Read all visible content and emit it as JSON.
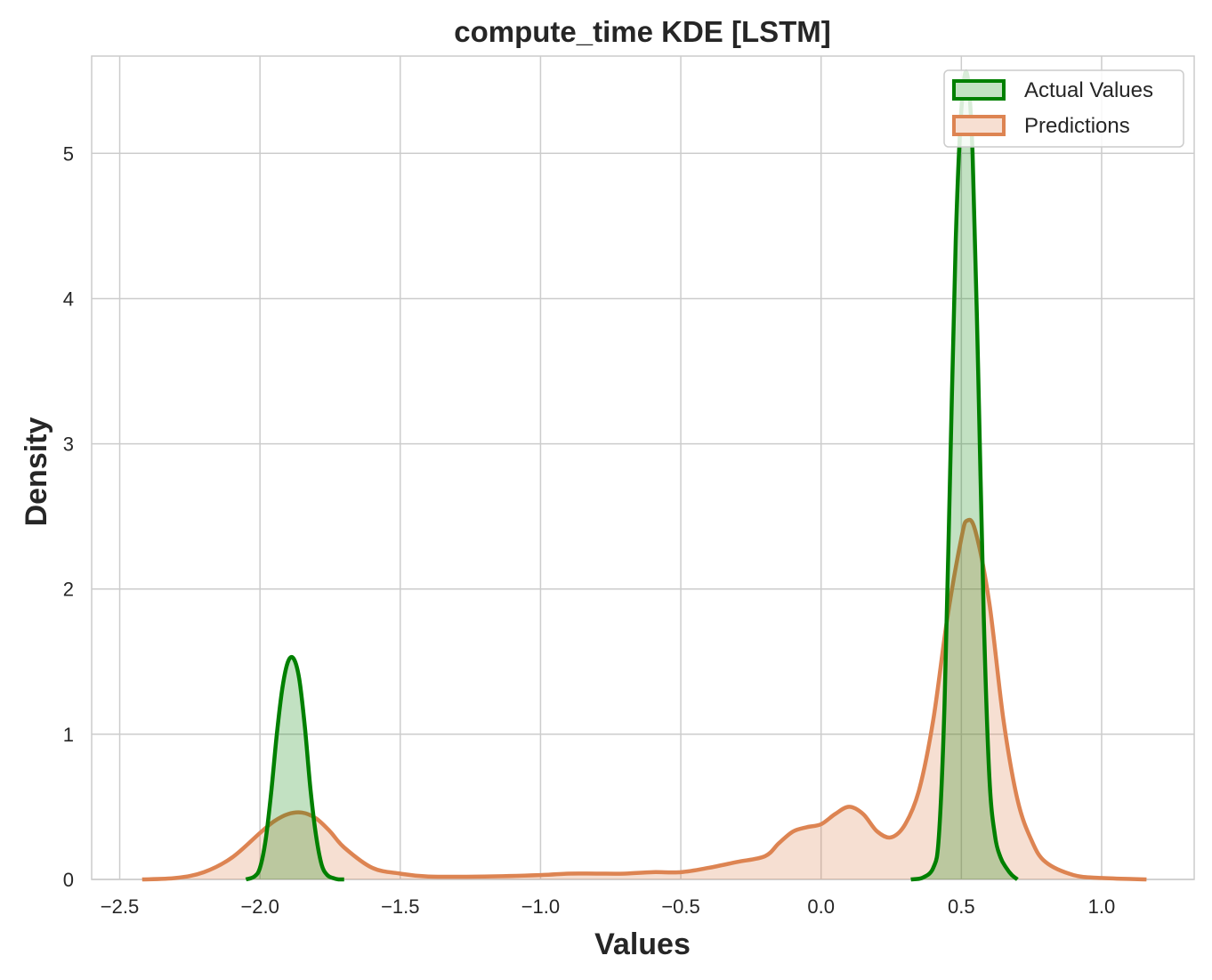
{
  "chart_data": {
    "type": "area",
    "title": "compute_time KDE [LSTM]",
    "xlabel": "Values",
    "ylabel": "Density",
    "xlim": [
      -2.6,
      1.33
    ],
    "ylim": [
      0,
      5.67
    ],
    "xticks": [
      -2.5,
      -2.0,
      -1.5,
      -1.0,
      -0.5,
      0.0,
      0.5,
      1.0
    ],
    "xtick_labels": [
      "−2.5",
      "−2.0",
      "−1.5",
      "−1.0",
      "−0.5",
      "0.0",
      "0.5",
      "1.0"
    ],
    "yticks": [
      0,
      1,
      2,
      3,
      4,
      5
    ],
    "ytick_labels": [
      "0",
      "1",
      "2",
      "3",
      "4",
      "5"
    ],
    "grid": true,
    "legend_position": "top-right",
    "series": [
      {
        "name": "Actual Values",
        "color": "#008000",
        "fill": "#c3e3c3",
        "x": [
          -2.05,
          -2.02,
          -2.0,
          -1.98,
          -1.96,
          -1.94,
          -1.92,
          -1.9,
          -1.88,
          -1.86,
          -1.84,
          -1.82,
          -1.8,
          -1.78,
          -1.76,
          -1.74,
          -1.72,
          -1.7,
          0.32,
          0.36,
          0.4,
          0.42,
          0.44,
          0.46,
          0.48,
          0.5,
          0.52,
          0.54,
          0.56,
          0.58,
          0.6,
          0.62,
          0.64,
          0.66,
          0.68,
          0.7
        ],
        "y": [
          0,
          0.02,
          0.08,
          0.27,
          0.6,
          1.0,
          1.32,
          1.5,
          1.52,
          1.38,
          1.05,
          0.62,
          0.3,
          0.1,
          0.03,
          0.01,
          0,
          0,
          0,
          0.01,
          0.08,
          0.3,
          1.2,
          2.8,
          4.4,
          5.3,
          5.55,
          5.0,
          3.5,
          1.8,
          0.7,
          0.3,
          0.15,
          0.08,
          0.03,
          0
        ]
      },
      {
        "name": "Predictions",
        "color": "#dd8452",
        "fill": "#f7dfd2",
        "x": [
          -2.42,
          -2.3,
          -2.2,
          -2.1,
          -2.0,
          -1.95,
          -1.9,
          -1.85,
          -1.8,
          -1.75,
          -1.7,
          -1.6,
          -1.5,
          -1.4,
          -1.2,
          -1.0,
          -0.9,
          -0.8,
          -0.7,
          -0.6,
          -0.5,
          -0.4,
          -0.3,
          -0.2,
          -0.15,
          -0.1,
          -0.05,
          0.0,
          0.05,
          0.1,
          0.15,
          0.2,
          0.25,
          0.3,
          0.35,
          0.4,
          0.45,
          0.5,
          0.52,
          0.55,
          0.6,
          0.65,
          0.7,
          0.75,
          0.8,
          0.9,
          1.0,
          1.16
        ],
        "y": [
          0,
          0.01,
          0.05,
          0.15,
          0.32,
          0.4,
          0.45,
          0.46,
          0.42,
          0.33,
          0.22,
          0.08,
          0.04,
          0.02,
          0.02,
          0.03,
          0.04,
          0.04,
          0.04,
          0.05,
          0.05,
          0.08,
          0.12,
          0.16,
          0.25,
          0.33,
          0.36,
          0.38,
          0.45,
          0.5,
          0.45,
          0.33,
          0.29,
          0.38,
          0.62,
          1.1,
          1.8,
          2.35,
          2.47,
          2.4,
          1.9,
          1.1,
          0.55,
          0.27,
          0.12,
          0.03,
          0.01,
          0
        ]
      }
    ]
  }
}
